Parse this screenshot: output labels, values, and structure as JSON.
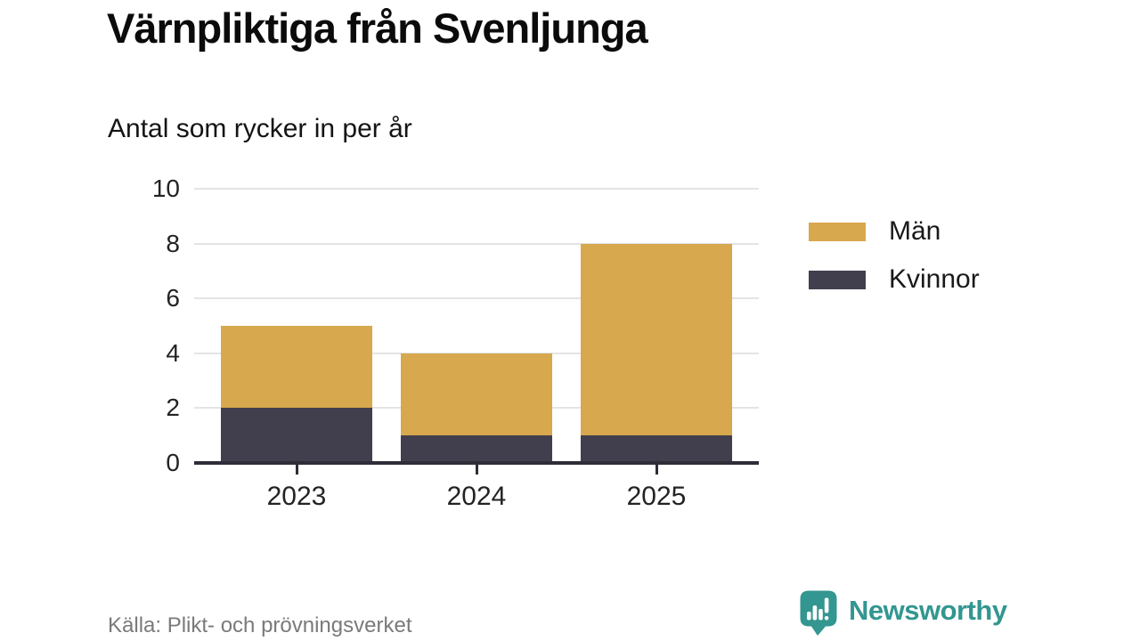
{
  "title": "Värnpliktiga från Svenljunga",
  "subtitle": "Antal som rycker in per år",
  "source": "Källa: Plikt- och prövningsverket",
  "brand": {
    "name": "Newsworthy",
    "color": "#339690",
    "icon": "bar-chart-speech-bubble-icon"
  },
  "colors": {
    "men": "#d7a84e",
    "women": "#413f4d",
    "axis": "#2e2d38",
    "grid": "#e4e4e4",
    "tick_label": "#232323",
    "source_text": "#7a7a7a",
    "background": "#ffffff"
  },
  "legend": [
    {
      "label": "Män",
      "color": "#d7a84e"
    },
    {
      "label": "Kvinnor",
      "color": "#413f4d"
    }
  ],
  "chart_data": {
    "type": "bar",
    "stacked": true,
    "title": "Värnpliktiga från Svenljunga",
    "subtitle": "Antal som rycker in per år",
    "categories": [
      "2023",
      "2024",
      "2025"
    ],
    "series": [
      {
        "name": "Kvinnor",
        "color": "#413f4d",
        "values": [
          2,
          1,
          1
        ]
      },
      {
        "name": "Män",
        "color": "#d7a84e",
        "values": [
          3,
          3,
          7
        ]
      }
    ],
    "totals": [
      5,
      4,
      8
    ],
    "xlabel": "",
    "ylabel": "Antal som rycker in per år",
    "ylim": [
      0,
      10
    ],
    "yticks": [
      0,
      2,
      4,
      6,
      8,
      10
    ],
    "grid": true,
    "legend_position": "right"
  }
}
